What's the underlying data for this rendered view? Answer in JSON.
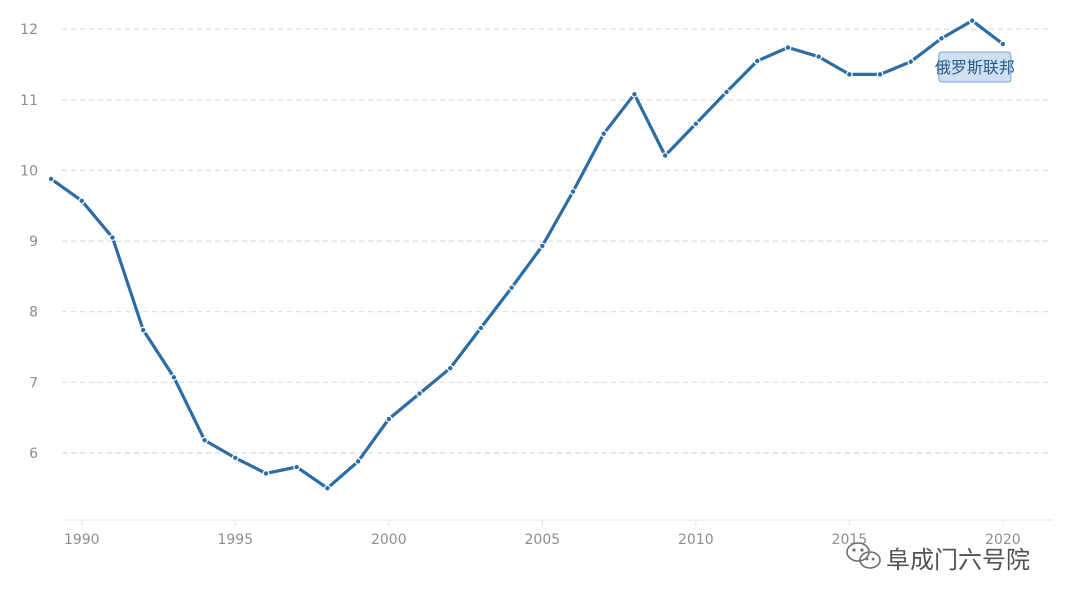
{
  "chart_data": {
    "type": "line",
    "title": "",
    "xlabel": "",
    "ylabel": "",
    "xlim": [
      1988.9,
      2021.6
    ],
    "ylim": [
      5.05,
      12.3
    ],
    "grid": true,
    "x_ticks": [
      1990,
      1995,
      2000,
      2005,
      2010,
      2015,
      2020
    ],
    "y_ticks": [
      6,
      7,
      8,
      9,
      10,
      11,
      12
    ],
    "x_tick_labels": [
      "1990",
      "1995",
      "2000",
      "2005",
      "2010",
      "2015",
      "2020"
    ],
    "y_tick_labels": [
      "6",
      "7",
      "8",
      "9",
      "10",
      "11",
      "12"
    ],
    "series": [
      {
        "name": "俄罗斯联邦",
        "color": "#2e6ca4",
        "x": [
          1989,
          1990,
          1991,
          1992,
          1993,
          1994,
          1995,
          1996,
          1997,
          1998,
          1999,
          2000,
          2001,
          2002,
          2003,
          2004,
          2005,
          2006,
          2007,
          2008,
          2009,
          2010,
          2011,
          2012,
          2013,
          2014,
          2015,
          2016,
          2017,
          2018,
          2019,
          2020
        ],
        "y": [
          9.88,
          9.57,
          9.05,
          7.74,
          7.07,
          6.18,
          5.93,
          5.71,
          5.8,
          5.5,
          5.88,
          6.48,
          6.84,
          7.2,
          7.77,
          8.34,
          8.93,
          9.7,
          10.52,
          11.08,
          10.21,
          10.66,
          11.11,
          11.55,
          11.74,
          11.61,
          11.36,
          11.36,
          11.54,
          11.87,
          12.12,
          11.79
        ]
      }
    ],
    "series_tag": "俄罗斯联邦"
  },
  "watermark": {
    "text": "阜成门六号院",
    "icon": "wechat-icon"
  }
}
